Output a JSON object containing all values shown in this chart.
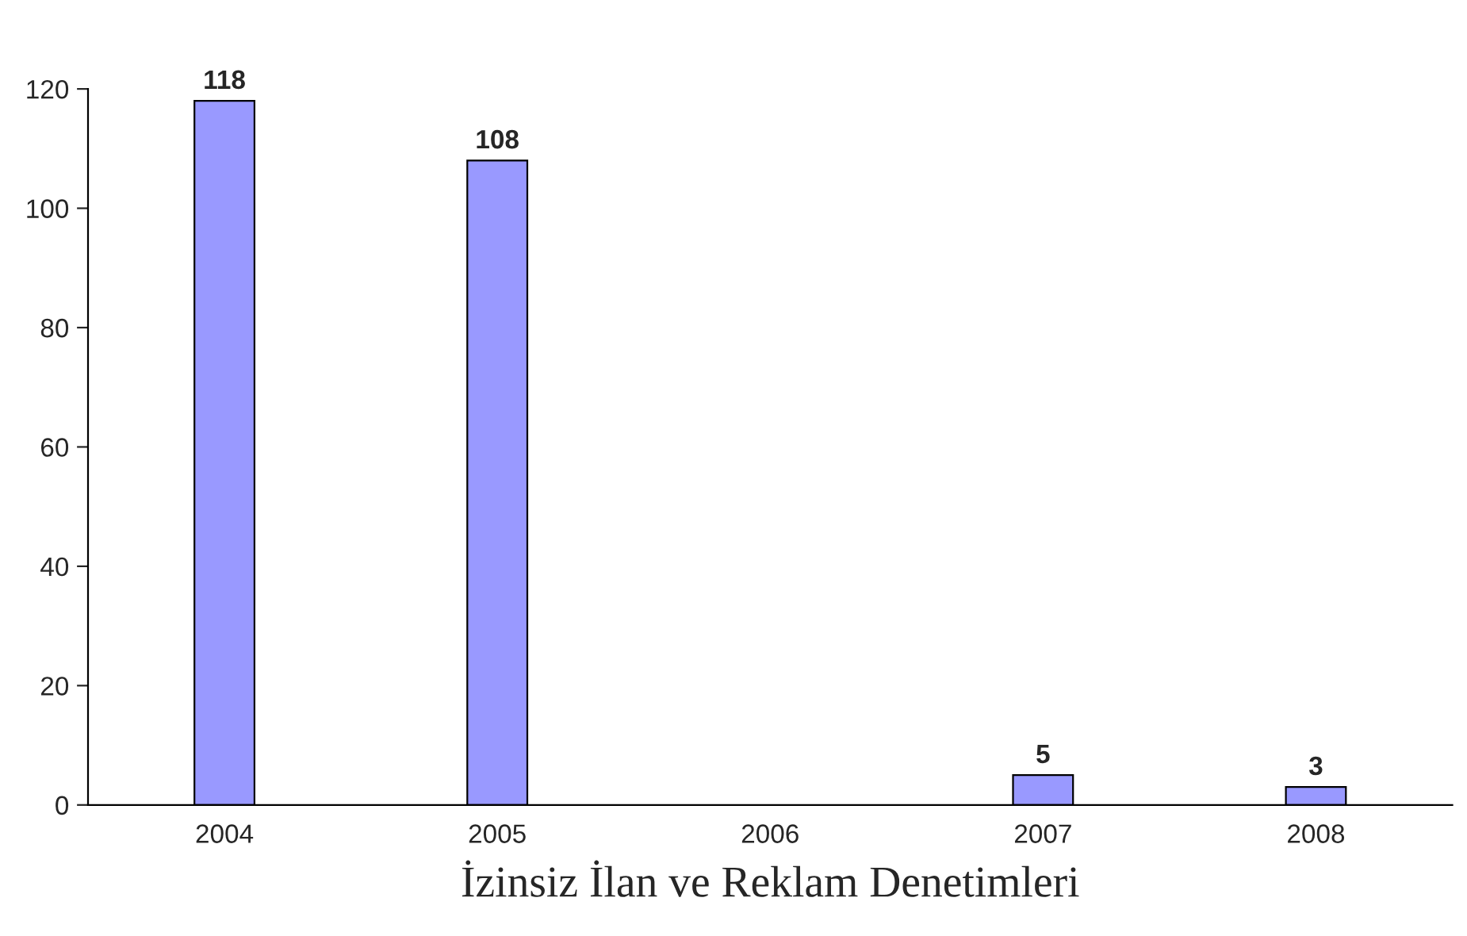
{
  "chart_data": {
    "type": "bar",
    "xlabel": "İzinsiz İlan ve Reklam Denetimleri",
    "categories": [
      "2004",
      "2005",
      "2006",
      "2007",
      "2008"
    ],
    "values": [
      118,
      108,
      null,
      5,
      3
    ],
    "color": "#9999ff",
    "ylim": [
      0,
      120
    ],
    "yticks": [
      0,
      20,
      40,
      60,
      80,
      100,
      120
    ],
    "data_labels": true,
    "grid": false,
    "legend": false
  }
}
